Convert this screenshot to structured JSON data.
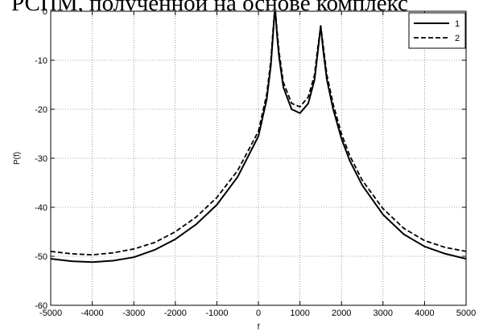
{
  "header_text": "РСПМ, полученной на основе комплекс",
  "chart_data": {
    "type": "line",
    "title": "",
    "xlabel": "f",
    "ylabel": "P(f)",
    "xlim": [
      -5000,
      5000
    ],
    "ylim": [
      -60,
      0
    ],
    "xticks": [
      -5000,
      -4000,
      -3000,
      -2000,
      -1000,
      0,
      1000,
      2000,
      3000,
      4000,
      5000
    ],
    "yticks": [
      -60,
      -50,
      -40,
      -30,
      -20,
      -10,
      0
    ],
    "grid": true,
    "legend_position": "top-right",
    "series": [
      {
        "name": "1",
        "style": "solid",
        "x": [
          -5000,
          -4500,
          -4000,
          -3500,
          -3000,
          -2500,
          -2000,
          -1500,
          -1000,
          -500,
          0,
          200,
          300,
          350,
          400,
          450,
          500,
          600,
          800,
          1000,
          1200,
          1350,
          1420,
          1500,
          1560,
          1650,
          1800,
          2000,
          2200,
          2500,
          3000,
          3500,
          4000,
          4500,
          5000
        ],
        "y": [
          -50.5,
          -51.0,
          -51.2,
          -50.9,
          -50.2,
          -48.7,
          -46.5,
          -43.5,
          -39.5,
          -33.8,
          -25.5,
          -18.0,
          -11.0,
          -5.0,
          1.0,
          -5.0,
          -9.5,
          -15.5,
          -20.0,
          -20.8,
          -18.8,
          -14.0,
          -9.0,
          -3.0,
          -8.0,
          -14.0,
          -20.0,
          -26.0,
          -30.5,
          -35.5,
          -41.5,
          -45.5,
          -48.0,
          -49.5,
          -50.5
        ]
      },
      {
        "name": "2",
        "style": "dashed",
        "x": [
          -5000,
          -4500,
          -4000,
          -3500,
          -3000,
          -2500,
          -2000,
          -1500,
          -1000,
          -500,
          0,
          200,
          300,
          350,
          400,
          450,
          500,
          600,
          800,
          1000,
          1200,
          1350,
          1420,
          1500,
          1560,
          1650,
          1800,
          2000,
          2200,
          2500,
          3000,
          3500,
          4000,
          4500,
          5000
        ],
        "y": [
          -49.0,
          -49.5,
          -49.7,
          -49.3,
          -48.5,
          -47.2,
          -45.0,
          -42.0,
          -38.0,
          -32.5,
          -24.5,
          -17.0,
          -10.0,
          -4.0,
          1.0,
          -4.0,
          -8.5,
          -14.5,
          -18.8,
          -19.5,
          -17.5,
          -13.0,
          -8.0,
          -3.0,
          -7.0,
          -13.0,
          -19.0,
          -25.0,
          -29.5,
          -34.5,
          -40.3,
          -44.3,
          -46.8,
          -48.2,
          -49.0
        ]
      }
    ]
  }
}
